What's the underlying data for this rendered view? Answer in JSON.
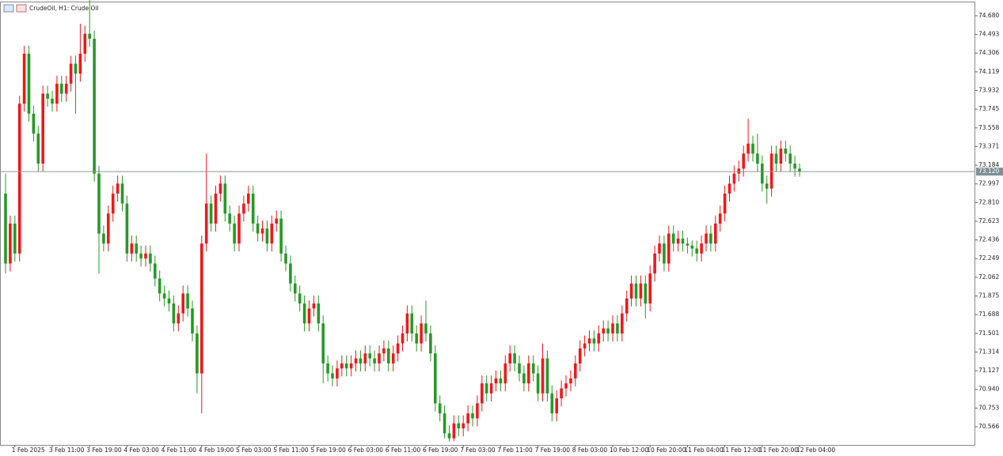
{
  "chart_data": {
    "type": "candlestick",
    "title": "CrudeOil, H1: Crude Oil",
    "up_color": "#f01818",
    "down_color": "#259a25",
    "categories": [
      null,
      null,
      "1 Feb 2025",
      null,
      null,
      null,
      null,
      null,
      null,
      null,
      "3 Feb 11:00",
      null,
      null,
      null,
      null,
      null,
      null,
      null,
      "3 Feb 19:00",
      null,
      null,
      null,
      null,
      null,
      null,
      null,
      "4 Feb 03:00",
      null,
      null,
      null,
      null,
      null,
      null,
      null,
      "4 Feb 11:00",
      null,
      null,
      null,
      null,
      null,
      null,
      null,
      "4 Feb 19:00",
      null,
      null,
      null,
      null,
      null,
      null,
      null,
      "5 Feb 03:00",
      null,
      null,
      null,
      null,
      null,
      null,
      null,
      "5 Feb 11:00",
      null,
      null,
      null,
      null,
      null,
      null,
      null,
      "5 Feb 19:00",
      null,
      null,
      null,
      null,
      null,
      null,
      null,
      "6 Feb 03:00",
      null,
      null,
      null,
      null,
      null,
      null,
      null,
      "6 Feb 11:00",
      null,
      null,
      null,
      null,
      null,
      null,
      null,
      "6 Feb 19:00",
      null,
      null,
      null,
      null,
      null,
      null,
      null,
      "7 Feb 03:00",
      null,
      null,
      null,
      null,
      null,
      null,
      null,
      "7 Feb 11:00",
      null,
      null,
      null,
      null,
      null,
      null,
      null,
      "7 Feb 19:00",
      null,
      null,
      null,
      null,
      null,
      null,
      null,
      "8 Feb 03:00",
      null,
      null,
      null,
      null,
      null,
      null,
      null,
      "10 Feb 12:00",
      null,
      null,
      null,
      null,
      null,
      null,
      null,
      "10 Feb 20:00",
      null,
      null,
      null,
      null,
      null,
      null,
      null,
      "11 Feb 04:00",
      null,
      null,
      null,
      null,
      null,
      null,
      null,
      "11 Feb 12:00",
      null,
      null,
      null,
      null,
      null,
      null,
      null,
      "11 Feb 20:00",
      null,
      null,
      null,
      null,
      null,
      null,
      null,
      "12 Feb 04:00"
    ],
    "open": [
      72.9,
      72.2,
      72.6,
      72.3,
      73.8,
      74.3,
      73.7,
      73.5,
      73.2,
      73.9,
      73.85,
      73.8,
      74.0,
      73.9,
      74.0,
      74.2,
      74.1,
      74.3,
      74.5,
      74.45,
      73.1,
      72.5,
      72.4,
      72.7,
      72.9,
      73.0,
      72.8,
      72.3,
      72.4,
      72.3,
      72.25,
      72.3,
      72.2,
      72.05,
      71.9,
      71.85,
      71.8,
      71.6,
      71.7,
      71.9,
      71.75,
      71.5,
      71.1,
      72.4,
      72.8,
      72.6,
      72.9,
      73.0,
      72.7,
      72.6,
      72.4,
      72.7,
      72.8,
      72.9,
      72.6,
      72.5,
      72.55,
      72.4,
      72.6,
      72.65,
      72.3,
      72.2,
      72.0,
      71.9,
      71.8,
      71.6,
      71.75,
      71.8,
      71.6,
      71.2,
      71.1,
      71.05,
      71.15,
      71.2,
      71.15,
      71.2,
      71.25,
      71.2,
      71.3,
      71.25,
      71.2,
      71.3,
      71.35,
      71.2,
      71.3,
      71.4,
      71.5,
      71.7,
      71.5,
      71.4,
      71.6,
      71.5,
      71.3,
      70.8,
      70.7,
      70.5,
      70.45,
      70.6,
      70.55,
      70.6,
      70.7,
      70.65,
      70.8,
      71.0,
      70.9,
      71.0,
      71.05,
      71.0,
      71.2,
      71.3,
      71.2,
      71.1,
      71.0,
      71.2,
      71.1,
      70.9,
      71.25,
      70.9,
      70.7,
      70.85,
      70.95,
      71.0,
      71.05,
      71.2,
      71.35,
      71.4,
      71.45,
      71.4,
      71.5,
      71.55,
      71.5,
      71.6,
      71.5,
      71.7,
      71.85,
      72.0,
      71.85,
      72.0,
      71.8,
      72.1,
      72.3,
      72.4,
      72.2,
      72.5,
      72.4,
      72.45,
      72.4,
      72.38,
      72.35,
      72.3,
      72.4,
      72.5,
      72.4,
      72.6,
      72.7,
      72.9,
      73.0,
      73.1,
      73.15,
      73.3,
      73.4,
      73.3,
      73.2,
      73.0,
      72.95,
      73.3,
      73.2,
      73.35,
      73.3,
      73.2,
      73.15
    ],
    "high": [
      73.1,
      72.68,
      72.68,
      73.88,
      74.38,
      74.38,
      73.78,
      73.58,
      73.98,
      73.98,
      73.93,
      74.08,
      74.08,
      74.08,
      74.28,
      74.28,
      74.6,
      74.58,
      74.85,
      74.53,
      73.18,
      72.58,
      72.78,
      72.98,
      73.08,
      73.08,
      72.88,
      72.48,
      72.48,
      72.38,
      72.38,
      72.38,
      72.28,
      72.13,
      71.98,
      71.93,
      71.88,
      71.78,
      71.98,
      71.98,
      71.83,
      71.58,
      72.48,
      73.3,
      72.88,
      72.98,
      73.08,
      73.08,
      72.78,
      72.68,
      72.78,
      72.88,
      72.98,
      72.98,
      72.68,
      72.63,
      72.63,
      72.68,
      72.73,
      72.73,
      72.38,
      72.28,
      72.08,
      71.98,
      71.88,
      71.83,
      71.88,
      71.88,
      71.68,
      71.28,
      71.18,
      71.23,
      71.28,
      71.28,
      71.28,
      71.33,
      71.33,
      71.38,
      71.38,
      71.33,
      71.38,
      71.43,
      71.43,
      71.38,
      71.48,
      71.58,
      71.78,
      71.78,
      71.58,
      71.68,
      71.83,
      71.58,
      71.38,
      70.88,
      70.78,
      70.58,
      70.68,
      70.68,
      70.68,
      70.78,
      70.78,
      70.88,
      71.08,
      71.08,
      71.08,
      71.13,
      71.13,
      71.28,
      71.38,
      71.38,
      71.28,
      71.18,
      71.28,
      71.28,
      71.18,
      71.4,
      71.33,
      70.98,
      70.93,
      71.03,
      71.08,
      71.13,
      71.28,
      71.43,
      71.48,
      71.53,
      71.53,
      71.58,
      71.63,
      71.63,
      71.68,
      71.68,
      71.78,
      71.93,
      72.08,
      72.08,
      72.08,
      72.08,
      72.18,
      72.38,
      72.48,
      72.48,
      72.58,
      72.58,
      72.53,
      72.53,
      72.46,
      72.43,
      72.43,
      72.48,
      72.58,
      72.58,
      72.68,
      72.78,
      72.98,
      73.08,
      73.18,
      73.23,
      73.38,
      73.65,
      73.48,
      73.5,
      73.28,
      73.08,
      73.38,
      73.38,
      73.43,
      73.43,
      73.38,
      73.28,
      73.2
    ],
    "low": [
      72.1,
      72.12,
      72.22,
      72.22,
      73.72,
      73.62,
      73.42,
      73.12,
      73.12,
      73.77,
      73.72,
      73.72,
      73.82,
      73.82,
      73.92,
      73.7,
      74.02,
      74.22,
      74.37,
      73.02,
      72.1,
      72.32,
      72.32,
      72.62,
      72.82,
      72.72,
      72.22,
      72.22,
      72.22,
      72.17,
      72.17,
      72.12,
      71.97,
      71.82,
      71.77,
      71.72,
      71.52,
      71.52,
      71.62,
      71.67,
      71.42,
      70.9,
      70.7,
      72.32,
      72.52,
      72.52,
      72.82,
      72.62,
      72.52,
      72.32,
      72.32,
      72.62,
      72.72,
      72.52,
      72.42,
      72.42,
      72.32,
      72.32,
      72.52,
      72.22,
      72.12,
      71.92,
      71.82,
      71.72,
      71.52,
      71.52,
      71.67,
      71.52,
      71.0,
      71.02,
      70.97,
      70.97,
      71.07,
      71.07,
      71.07,
      71.12,
      71.12,
      71.12,
      71.17,
      71.12,
      71.12,
      71.22,
      71.12,
      71.12,
      71.22,
      71.32,
      71.42,
      71.42,
      71.32,
      71.32,
      71.42,
      71.22,
      70.72,
      70.62,
      70.45,
      70.42,
      70.42,
      70.47,
      70.47,
      70.52,
      70.57,
      70.57,
      70.72,
      70.82,
      70.82,
      70.92,
      70.92,
      70.92,
      71.12,
      71.12,
      71.02,
      70.92,
      70.92,
      71.02,
      70.82,
      70.82,
      70.82,
      70.62,
      70.62,
      70.77,
      70.87,
      70.92,
      70.97,
      71.12,
      71.27,
      71.32,
      71.32,
      71.32,
      71.42,
      71.42,
      71.42,
      71.42,
      71.42,
      71.62,
      71.77,
      71.77,
      71.77,
      71.65,
      71.72,
      72.02,
      72.22,
      72.12,
      72.12,
      72.32,
      72.32,
      72.32,
      72.3,
      72.27,
      72.22,
      72.22,
      72.32,
      72.32,
      72.32,
      72.52,
      72.62,
      72.82,
      72.92,
      73.02,
      73.07,
      73.22,
      73.22,
      73.12,
      72.92,
      72.8,
      72.87,
      73.12,
      73.12,
      73.22,
      73.12,
      73.07,
      73.07
    ],
    "close": [
      72.2,
      72.6,
      72.3,
      73.8,
      74.3,
      73.7,
      73.5,
      73.2,
      73.9,
      73.85,
      73.8,
      74.0,
      73.9,
      74.0,
      74.2,
      74.1,
      74.3,
      74.5,
      74.45,
      73.1,
      72.5,
      72.4,
      72.7,
      72.9,
      73.0,
      72.8,
      72.3,
      72.4,
      72.3,
      72.25,
      72.3,
      72.2,
      72.05,
      71.9,
      71.85,
      71.8,
      71.6,
      71.7,
      71.9,
      71.75,
      71.5,
      71.1,
      72.4,
      72.8,
      72.6,
      72.9,
      73.0,
      72.7,
      72.6,
      72.4,
      72.7,
      72.8,
      72.9,
      72.6,
      72.5,
      72.55,
      72.4,
      72.6,
      72.65,
      72.3,
      72.2,
      72.0,
      71.9,
      71.8,
      71.6,
      71.75,
      71.8,
      71.6,
      71.2,
      71.1,
      71.05,
      71.15,
      71.2,
      71.15,
      71.2,
      71.25,
      71.2,
      71.3,
      71.25,
      71.2,
      71.3,
      71.35,
      71.2,
      71.3,
      71.4,
      71.5,
      71.7,
      71.5,
      71.4,
      71.6,
      71.5,
      71.3,
      70.8,
      70.7,
      70.5,
      70.45,
      70.6,
      70.55,
      70.6,
      70.7,
      70.65,
      70.8,
      71.0,
      70.9,
      71.0,
      71.05,
      71.0,
      71.2,
      71.3,
      71.2,
      71.1,
      71.0,
      71.2,
      71.1,
      70.9,
      71.25,
      70.9,
      70.7,
      70.85,
      70.95,
      71.0,
      71.05,
      71.2,
      71.35,
      71.4,
      71.45,
      71.4,
      71.5,
      71.55,
      71.5,
      71.6,
      71.5,
      71.7,
      71.85,
      72.0,
      71.85,
      72.0,
      71.8,
      72.1,
      72.3,
      72.4,
      72.2,
      72.5,
      72.4,
      72.45,
      72.4,
      72.38,
      72.35,
      72.3,
      72.4,
      72.5,
      72.4,
      72.6,
      72.7,
      72.9,
      73.0,
      73.1,
      73.15,
      73.3,
      73.4,
      73.3,
      73.2,
      73.0,
      72.95,
      73.3,
      73.2,
      73.35,
      73.3,
      73.2,
      73.15,
      73.12
    ],
    "ylim": [
      70.384,
      74.814
    ],
    "yticks": [
      {
        "value": 74.68,
        "label": "74.680"
      },
      74.493,
      74.306,
      74.119,
      73.932,
      73.745,
      73.558,
      73.371,
      73.184,
      72.997,
      {
        "value": 72.81,
        "label": "72.810"
      },
      72.623,
      72.436,
      72.249,
      72.062,
      71.875,
      71.688,
      71.501,
      71.314,
      71.127,
      {
        "value": 70.94,
        "label": "70.940"
      },
      70.753,
      70.566
    ],
    "price_line": {
      "value": 73.12,
      "label": "73.120"
    }
  }
}
